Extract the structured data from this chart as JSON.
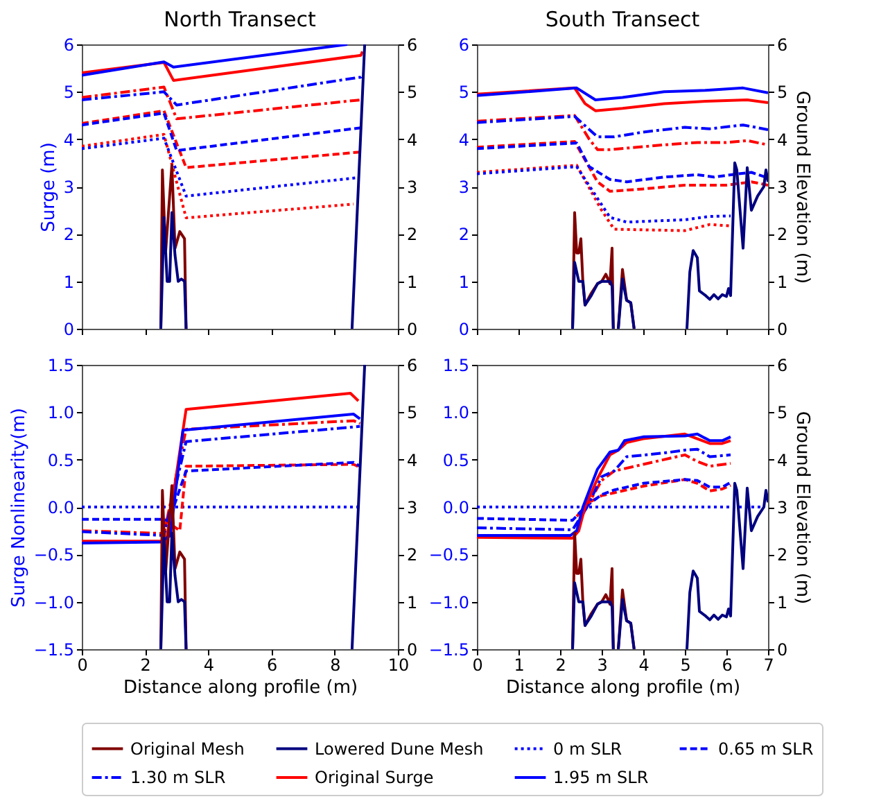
{
  "chart_data": [
    {
      "type": "line",
      "title": "North Transect",
      "ylabel": "Surge (m)",
      "xlim": [
        0,
        10
      ],
      "xticks": [
        0,
        2,
        4,
        6,
        8,
        10
      ],
      "ylim": [
        0,
        6
      ],
      "yticks": [
        0,
        1,
        2,
        3,
        4,
        5,
        6
      ],
      "y2lim": [
        0,
        6
      ],
      "y2ticks": [
        0,
        1,
        2,
        3,
        4,
        5,
        6
      ],
      "tick_labels": "y",
      "legend": "bottom",
      "series": [
        {
          "color": "#ff0000",
          "line_style": "dotted",
          "x": [
            0,
            2.6,
            3.3,
            8.6
          ],
          "values": [
            3.85,
            4.1,
            2.34,
            2.63
          ]
        },
        {
          "name": "0 m SLR",
          "color": "#0000ff",
          "line_style": "dotted",
          "x": [
            0,
            2.6,
            3.3,
            8.76
          ],
          "values": [
            3.8,
            4.02,
            2.8,
            3.19
          ]
        },
        {
          "color": "#ff0000",
          "line_style": "dashed",
          "x": [
            0,
            2.6,
            3.3,
            8.83
          ],
          "values": [
            4.33,
            4.6,
            3.4,
            3.73
          ]
        },
        {
          "name": "0.65 m SLR",
          "color": "#0000ff",
          "line_style": "dashed",
          "x": [
            0,
            2.6,
            3.0,
            8.83,
            8.9
          ],
          "values": [
            4.3,
            4.55,
            3.76,
            4.24,
            4.3
          ]
        },
        {
          "color": "#ff0000",
          "line_style": "dashdot",
          "x": [
            0,
            2.6,
            3.0,
            8.83
          ],
          "values": [
            4.88,
            5.1,
            4.43,
            4.83
          ]
        },
        {
          "name": "1.30 m SLR",
          "color": "#0000ff",
          "line_style": "dashdot",
          "x": [
            0,
            2.6,
            3.0,
            8.83,
            8.9
          ],
          "values": [
            4.83,
            5.0,
            4.72,
            5.31,
            5.38
          ]
        },
        {
          "name": "Original Surge",
          "color": "#ff0000",
          "line_style": "solid",
          "x": [
            0,
            2.6,
            2.9,
            8.83,
            8.88
          ],
          "values": [
            5.4,
            5.62,
            5.24,
            5.77,
            5.85
          ]
        },
        {
          "name": "1.95 m SLR",
          "color": "#0000ff",
          "line_style": "solid",
          "x": [
            0,
            2.6,
            2.9,
            8.4
          ],
          "values": [
            5.35,
            5.63,
            5.52,
            6.0
          ]
        },
        {
          "name": "Original Mesh",
          "color": "#800000",
          "line_style": "solid",
          "axis": "y2",
          "x": [
            2.5,
            2.55,
            2.65,
            2.85,
            2.95,
            3.1,
            3.25,
            3.3
          ],
          "values": [
            0,
            3.35,
            1.6,
            3.45,
            1.7,
            2.05,
            1.9,
            0
          ]
        },
        {
          "name": "Lowered Dune Mesh",
          "color": "#000080",
          "line_style": "solid",
          "axis": "y2",
          "x": [
            2.5,
            2.6,
            2.7,
            2.78,
            2.85,
            2.95,
            3.05,
            3.15,
            3.25,
            3.3,
            5.9,
            8.55,
            8.95
          ],
          "values": [
            0,
            2.35,
            1.0,
            1.0,
            2.45,
            1.55,
            1.0,
            1.05,
            1.0,
            0,
            null,
            0,
            6
          ]
        }
      ]
    },
    {
      "type": "line",
      "title": "South Transect",
      "y2label": "Ground Elevation (m)",
      "xlim": [
        0,
        7
      ],
      "xticks": [
        0,
        1,
        2,
        3,
        4,
        5,
        6,
        7
      ],
      "ylim": [
        0,
        6
      ],
      "yticks": [
        0,
        1,
        2,
        3,
        4,
        5,
        6
      ],
      "y2lim": [
        0,
        6
      ],
      "y2ticks": [
        0,
        1,
        2,
        3,
        4,
        5,
        6
      ],
      "tick_labels": "y",
      "legend": "bottom",
      "series": [
        {
          "color": "#ff0000",
          "line_style": "dotted",
          "x": [
            0,
            2.4,
            3.0,
            3.3,
            5.0,
            5.6,
            6.1
          ],
          "values": [
            3.3,
            3.45,
            2.5,
            2.1,
            2.07,
            2.2,
            2.17
          ]
        },
        {
          "name": "0 m SLR",
          "color": "#0000ff",
          "line_style": "dotted",
          "x": [
            0,
            2.4,
            3.2,
            3.6,
            5.0,
            5.6,
            6.1
          ],
          "values": [
            3.27,
            3.42,
            2.35,
            2.25,
            2.3,
            2.37,
            2.38
          ]
        },
        {
          "color": "#ff0000",
          "line_style": "dashed",
          "x": [
            0,
            2.35,
            2.9,
            3.2,
            4.0,
            5.0,
            6.0,
            6.6,
            7.0
          ],
          "values": [
            3.83,
            3.95,
            3.1,
            2.9,
            2.95,
            3.03,
            3.03,
            3.1,
            3.03
          ]
        },
        {
          "name": "0.65 m SLR",
          "color": "#0000ff",
          "line_style": "dashed",
          "x": [
            0,
            2.4,
            2.7,
            3.2,
            3.6,
            4.5,
            5.3,
            5.7,
            6.3,
            6.6,
            7.0
          ],
          "values": [
            3.8,
            3.92,
            3.42,
            3.15,
            3.1,
            3.2,
            3.25,
            3.2,
            3.27,
            3.3,
            3.18
          ]
        },
        {
          "color": "#ff0000",
          "line_style": "dashdot",
          "x": [
            0,
            2.35,
            2.7,
            2.9,
            3.2,
            4.5,
            5.3,
            6.0,
            6.5,
            7.0
          ],
          "values": [
            4.38,
            4.5,
            4.0,
            3.78,
            3.78,
            3.88,
            3.93,
            3.93,
            3.97,
            3.88
          ]
        },
        {
          "name": "1.30 m SLR",
          "color": "#0000ff",
          "line_style": "dashdot",
          "x": [
            0,
            2.35,
            2.9,
            3.3,
            4.0,
            5.0,
            5.6,
            6.4,
            7.0
          ],
          "values": [
            4.35,
            4.48,
            4.05,
            4.05,
            4.15,
            4.25,
            4.22,
            4.3,
            4.2
          ]
        },
        {
          "name": "Original Surge",
          "color": "#ff0000",
          "line_style": "solid",
          "x": [
            0,
            2.35,
            2.6,
            2.85,
            3.5,
            4.5,
            5.5,
            6.5,
            7.0
          ],
          "values": [
            4.95,
            5.08,
            4.75,
            4.6,
            4.65,
            4.75,
            4.8,
            4.83,
            4.77
          ]
        },
        {
          "name": "1.95 m SLR",
          "color": "#0000ff",
          "line_style": "solid",
          "x": [
            0,
            2.4,
            2.85,
            3.5,
            4.5,
            5.5,
            6.4,
            7.0
          ],
          "values": [
            4.92,
            5.08,
            4.83,
            4.88,
            5.0,
            5.03,
            5.08,
            4.98
          ]
        },
        {
          "name": "Original Mesh",
          "color": "#800000",
          "line_style": "solid",
          "axis": "y2",
          "x": [
            2.3,
            2.35,
            2.4,
            2.45,
            2.5,
            2.55,
            2.6,
            2.75,
            2.9,
            3.0,
            3.1,
            3.2,
            3.25,
            3.28,
            3.34,
            3.4,
            3.5,
            3.6,
            3.7,
            3.78
          ],
          "values": [
            0,
            2.45,
            1.6,
            1.6,
            1.9,
            0.95,
            0.5,
            0.75,
            0.95,
            1.0,
            1.15,
            0.95,
            1.7,
            0,
            null,
            0,
            1.25,
            0.6,
            0.55,
            0
          ]
        },
        {
          "name": "Lowered Dune Mesh",
          "color": "#000080",
          "line_style": "solid",
          "axis": "y2",
          "x": [
            2.3,
            2.35,
            2.45,
            2.55,
            2.6,
            2.75,
            2.9,
            3.0,
            3.2,
            3.25,
            3.28,
            3.34,
            3.4,
            3.5,
            3.6,
            3.7,
            3.78,
            4.4,
            5.05,
            5.12,
            5.2,
            5.3,
            5.35,
            5.5,
            5.6,
            5.7,
            5.8,
            5.9,
            6.0,
            6.05,
            6.1,
            6.2,
            6.25,
            6.4,
            6.5,
            6.6,
            6.75,
            6.9,
            6.95,
            7.0
          ],
          "values": [
            0,
            1.4,
            1.0,
            1.0,
            0.5,
            0.7,
            0.95,
            1.0,
            1.0,
            0.9,
            0,
            null,
            0,
            1.05,
            0.6,
            0.55,
            0,
            null,
            0,
            1.2,
            1.65,
            1.5,
            0.8,
            0.7,
            0.62,
            0.72,
            0.63,
            0.72,
            0.68,
            0.85,
            0.7,
            3.5,
            3.35,
            1.7,
            3.4,
            2.5,
            2.8,
            3.0,
            3.35,
            3.1
          ]
        }
      ]
    },
    {
      "type": "line",
      "xlabel": "Distance along profile (m)",
      "ylabel": "Surge Nonlinearity(m)",
      "xlim": [
        0,
        10
      ],
      "xticks": [
        0,
        2,
        4,
        6,
        8,
        10
      ],
      "ylim": [
        -1.5,
        1.5
      ],
      "yticks": [
        {
          "value": -1.5,
          "label": "−1.5"
        },
        {
          "value": -1.0,
          "label": "−1.0"
        },
        {
          "value": -0.5,
          "label": "−0.5"
        },
        {
          "value": 0,
          "label": "0.0"
        },
        {
          "value": 0.5,
          "label": "0.5"
        },
        {
          "value": 1.0,
          "label": "1.0"
        },
        {
          "value": 1.5,
          "label": "1.5"
        }
      ],
      "y2lim": [
        0,
        6
      ],
      "y2ticks": [
        0,
        1,
        2,
        3,
        4,
        5,
        6
      ],
      "legend": "bottom",
      "series": [
        {
          "name": "0 m SLR",
          "color": "#0000ff",
          "line_style": "dotted",
          "x": [
            0,
            8.8
          ],
          "values": [
            0,
            0
          ]
        },
        {
          "color": "#ff0000",
          "line_style": "dashed",
          "x": [
            2.6,
            3.1,
            3.3,
            8.6,
            8.8
          ],
          "values": [
            -0.13,
            -0.25,
            0.43,
            0.45,
            0.42
          ]
        },
        {
          "name": "0.65 m SLR",
          "color": "#0000ff",
          "line_style": "dashed",
          "x": [
            0,
            2.6,
            2.75,
            3.3,
            8.6,
            8.8
          ],
          "values": [
            -0.13,
            -0.13,
            -0.15,
            0.38,
            0.47,
            0.43
          ]
        },
        {
          "color": "#ff0000",
          "line_style": "dashdot",
          "x": [
            0,
            2.6,
            3.3,
            8.6,
            8.8
          ],
          "values": [
            -0.25,
            -0.28,
            0.82,
            0.91,
            0.88
          ]
        },
        {
          "name": "1.30 m SLR",
          "color": "#0000ff",
          "line_style": "dashdot",
          "x": [
            0,
            2.6,
            3.3,
            8.8
          ],
          "values": [
            -0.26,
            -0.3,
            0.69,
            0.85
          ]
        },
        {
          "name": "Original Surge",
          "color": "#ff0000",
          "line_style": "solid",
          "x": [
            0,
            2.5,
            2.65,
            3.3,
            8.5,
            8.75
          ],
          "values": [
            -0.36,
            -0.36,
            -0.42,
            1.03,
            1.2,
            1.12
          ]
        },
        {
          "name": "1.95 m SLR",
          "color": "#0000ff",
          "line_style": "solid",
          "x": [
            0,
            2.5,
            2.8,
            3.2,
            8.6,
            8.8
          ],
          "values": [
            -0.38,
            -0.37,
            -0.3,
            0.81,
            0.98,
            0.93
          ]
        },
        {
          "name": "Original Mesh",
          "color": "#800000",
          "line_style": "solid",
          "axis": "y2",
          "x": [
            2.5,
            2.55,
            2.65,
            2.85,
            2.95,
            3.1,
            3.25,
            3.3
          ],
          "values": [
            0,
            3.35,
            1.6,
            3.45,
            1.7,
            2.05,
            1.9,
            0
          ]
        },
        {
          "name": "Lowered Dune Mesh",
          "color": "#000080",
          "line_style": "solid",
          "axis": "y2",
          "x": [
            2.5,
            2.6,
            2.7,
            2.78,
            2.85,
            2.95,
            3.05,
            3.15,
            3.25,
            3.3,
            5.9,
            8.55,
            8.95
          ],
          "values": [
            0,
            2.35,
            1.0,
            1.0,
            2.45,
            1.55,
            1.0,
            1.05,
            1.0,
            0,
            null,
            0,
            6
          ]
        }
      ]
    },
    {
      "type": "line",
      "xlabel": "Distance along profile (m)",
      "y2label": "Ground Elevation (m)",
      "xlim": [
        0,
        7
      ],
      "xticks": [
        0,
        1,
        2,
        3,
        4,
        5,
        6,
        7
      ],
      "ylim": [
        -1.5,
        1.5
      ],
      "yticks": [
        {
          "value": -1.5,
          "label": "−1.5"
        },
        {
          "value": -1.0,
          "label": "−1.0"
        },
        {
          "value": -0.5,
          "label": "−0.5"
        },
        {
          "value": 0,
          "label": "0.0"
        },
        {
          "value": 0.5,
          "label": "0.5"
        },
        {
          "value": 1.0,
          "label": "1.0"
        },
        {
          "value": 1.5,
          "label": "1.5"
        }
      ],
      "y2lim": [
        0,
        6
      ],
      "y2ticks": [
        0,
        1,
        2,
        3,
        4,
        5,
        6
      ],
      "legend": "bottom",
      "series": [
        {
          "name": "0 m SLR",
          "color": "#0000ff",
          "line_style": "dotted",
          "x": [
            0,
            6.9
          ],
          "values": [
            0,
            0
          ]
        },
        {
          "color": "#ff0000",
          "line_style": "dashed",
          "x": [
            2.4,
            2.7,
            3.0,
            3.3,
            4.0,
            5.0,
            5.3,
            5.6,
            5.9,
            6.1
          ],
          "values": [
            -0.1,
            0.05,
            0.12,
            0.15,
            0.22,
            0.29,
            0.25,
            0.17,
            0.19,
            0.23
          ]
        },
        {
          "name": "0.65 m SLR",
          "color": "#0000ff",
          "line_style": "dashed",
          "x": [
            0,
            2.3,
            2.6,
            3.0,
            3.3,
            4.0,
            5.0,
            5.3,
            5.6,
            5.9,
            6.1
          ],
          "values": [
            -0.12,
            -0.14,
            0.0,
            0.13,
            0.18,
            0.25,
            0.29,
            0.28,
            0.21,
            0.21,
            0.26
          ]
        },
        {
          "color": "#ff0000",
          "line_style": "dashdot",
          "x": [
            2.4,
            2.7,
            3.0,
            3.3,
            4.0,
            5.0,
            5.3,
            5.6,
            6.1
          ],
          "values": [
            -0.2,
            0.05,
            0.28,
            0.38,
            0.45,
            0.55,
            0.48,
            0.43,
            0.46
          ]
        },
        {
          "name": "1.30 m SLR",
          "color": "#0000ff",
          "line_style": "dashdot",
          "x": [
            0,
            2.3,
            2.65,
            3.0,
            3.3,
            3.6,
            4.5,
            5.0,
            5.3,
            5.6,
            6.1
          ],
          "values": [
            -0.22,
            -0.24,
            0.0,
            0.32,
            0.38,
            0.53,
            0.57,
            0.6,
            0.61,
            0.53,
            0.55
          ]
        },
        {
          "name": "Original Surge",
          "color": "#ff0000",
          "line_style": "solid",
          "x": [
            0,
            2.3,
            2.45,
            2.6,
            2.9,
            3.2,
            3.4,
            3.6,
            4.0,
            5.0,
            5.3,
            5.6,
            5.9,
            6.1
          ],
          "values": [
            -0.32,
            -0.33,
            -0.25,
            0.0,
            0.3,
            0.55,
            0.6,
            0.68,
            0.72,
            0.77,
            0.72,
            0.67,
            0.67,
            0.7
          ]
        },
        {
          "name": "1.95 m SLR",
          "color": "#0000ff",
          "line_style": "solid",
          "x": [
            0,
            2.25,
            2.4,
            2.55,
            2.9,
            3.2,
            3.4,
            3.55,
            4.0,
            5.0,
            5.3,
            5.6,
            5.9,
            6.1
          ],
          "values": [
            -0.3,
            -0.3,
            -0.25,
            0.0,
            0.4,
            0.58,
            0.6,
            0.7,
            0.74,
            0.75,
            0.77,
            0.7,
            0.7,
            0.74
          ]
        },
        {
          "name": "Original Mesh",
          "color": "#800000",
          "line_style": "solid",
          "axis": "y2",
          "x": [
            2.3,
            2.35,
            2.4,
            2.45,
            2.5,
            2.55,
            2.6,
            2.75,
            2.9,
            3.0,
            3.1,
            3.2,
            3.25,
            3.28,
            3.34,
            3.4,
            3.5,
            3.6,
            3.7,
            3.78
          ],
          "values": [
            0,
            2.45,
            1.6,
            1.6,
            1.9,
            0.95,
            0.5,
            0.75,
            0.95,
            1.0,
            1.15,
            0.95,
            1.7,
            0,
            null,
            0,
            1.25,
            0.6,
            0.55,
            0
          ]
        },
        {
          "name": "Lowered Dune Mesh",
          "color": "#000080",
          "line_style": "solid",
          "axis": "y2",
          "x": [
            2.3,
            2.35,
            2.45,
            2.55,
            2.6,
            2.75,
            2.9,
            3.0,
            3.2,
            3.25,
            3.28,
            3.34,
            3.4,
            3.5,
            3.6,
            3.7,
            3.78,
            4.4,
            5.05,
            5.12,
            5.2,
            5.3,
            5.35,
            5.5,
            5.6,
            5.7,
            5.8,
            5.9,
            6.0,
            6.05,
            6.1,
            6.2,
            6.25,
            6.4,
            6.5,
            6.6,
            6.75,
            6.9,
            6.95,
            7.0
          ],
          "values": [
            0,
            1.4,
            1.0,
            1.0,
            0.5,
            0.7,
            0.95,
            1.0,
            1.0,
            0.9,
            0,
            null,
            0,
            1.05,
            0.6,
            0.55,
            0,
            null,
            0,
            1.2,
            1.65,
            1.5,
            0.8,
            0.7,
            0.62,
            0.72,
            0.63,
            0.72,
            0.68,
            0.85,
            0.7,
            3.5,
            3.35,
            1.7,
            3.4,
            2.5,
            2.8,
            3.0,
            3.35,
            3.1
          ]
        }
      ]
    }
  ]
}
